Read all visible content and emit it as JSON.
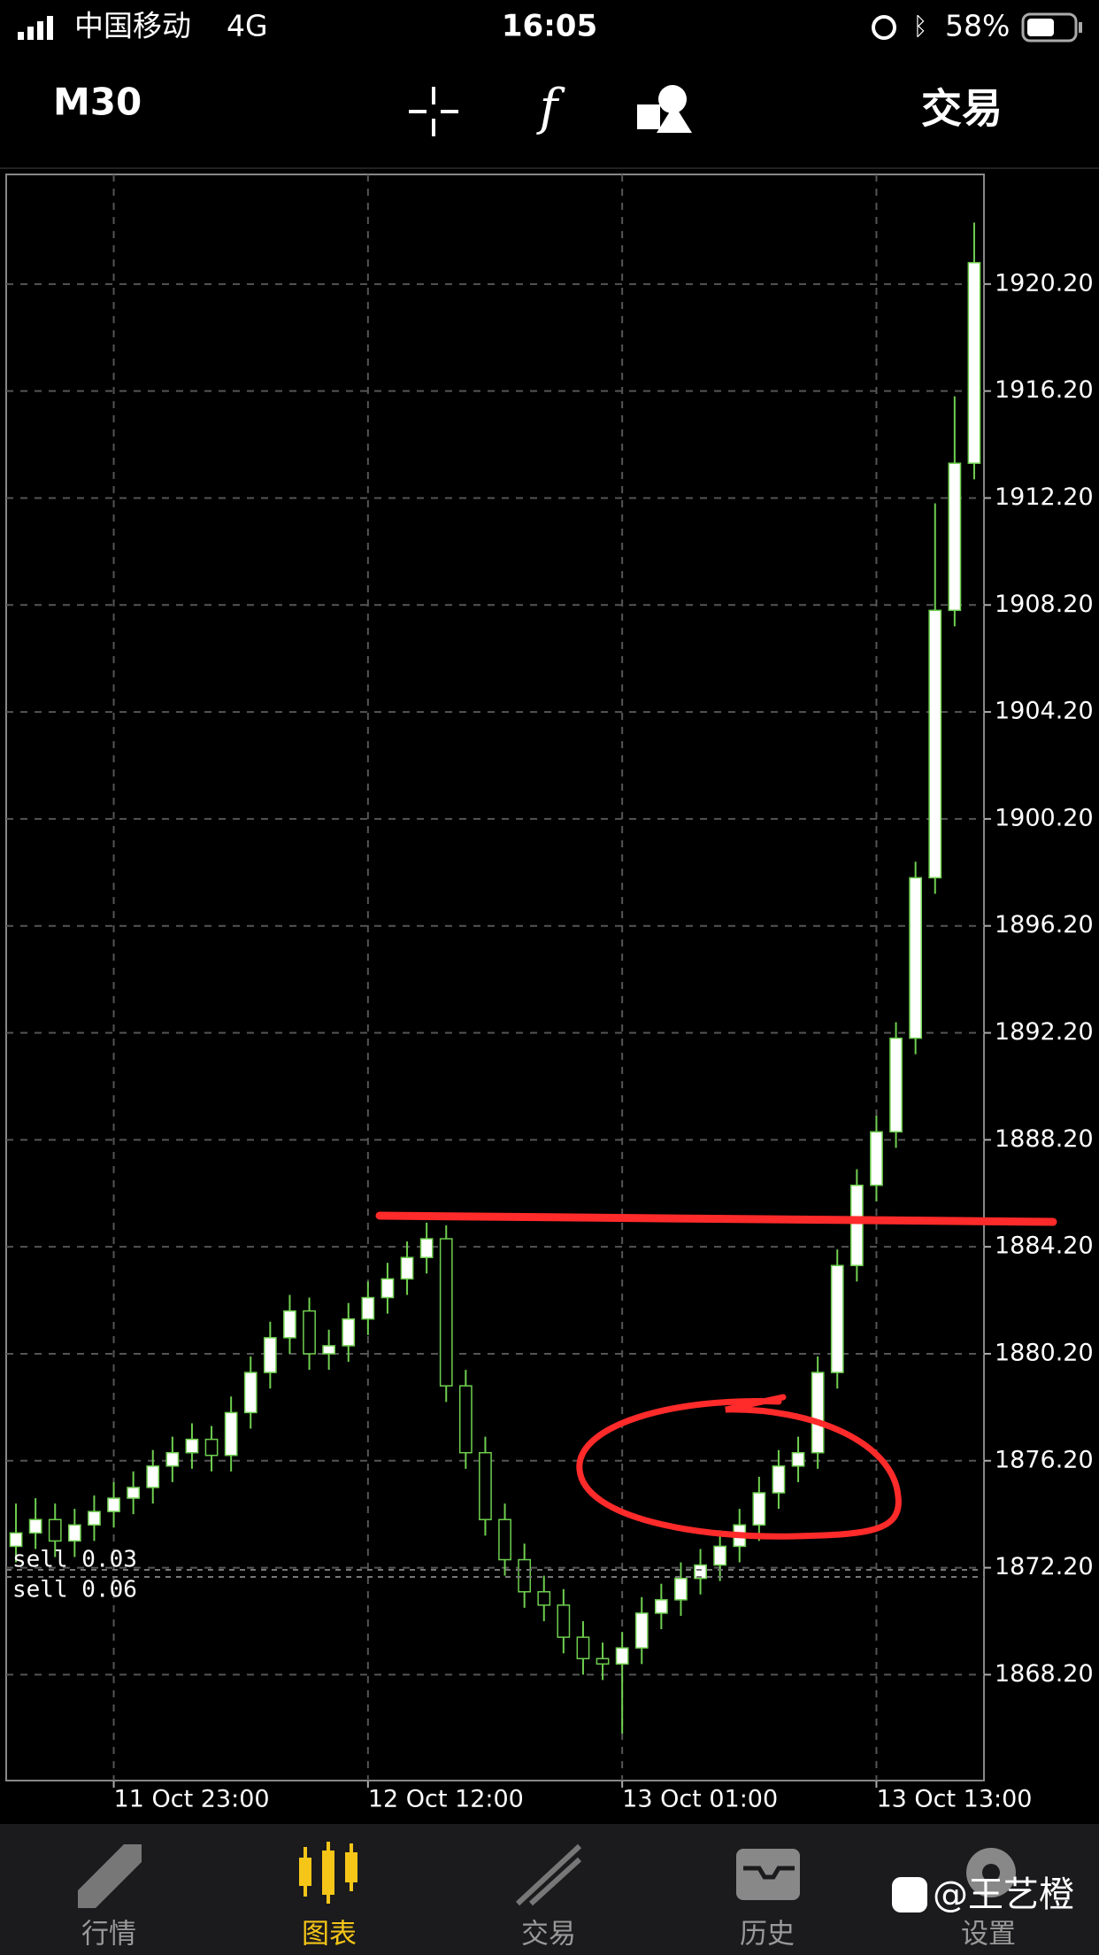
{
  "status_bar": {
    "carrier": "中国移动",
    "network": "4G",
    "time": "16:05",
    "battery": "58%"
  },
  "toolbar": {
    "timeframe": "M30",
    "trade": "交易"
  },
  "chart_data": {
    "type": "candlestick",
    "categories": [
      null,
      null,
      null,
      null,
      null,
      "11 Oct 23:00",
      null,
      null,
      null,
      null,
      null,
      null,
      null,
      null,
      null,
      null,
      null,
      null,
      "12 Oct 12:00",
      null,
      null,
      null,
      null,
      null,
      null,
      null,
      null,
      null,
      null,
      null,
      null,
      "13 Oct 01:00",
      null,
      null,
      null,
      null,
      null,
      null,
      null,
      null,
      null,
      null,
      null,
      null,
      "13 Oct 13:00",
      null,
      null,
      null,
      null,
      null
    ],
    "open": [
      1873.0,
      1873.5,
      1874.0,
      1873.2,
      1873.8,
      1874.3,
      1874.8,
      1875.2,
      1876.0,
      1876.5,
      1877.0,
      1876.4,
      1878.0,
      1879.5,
      1880.8,
      1881.8,
      1880.2,
      1880.5,
      1881.5,
      1882.3,
      1883.0,
      1883.8,
      1884.5,
      1879.0,
      1876.5,
      1874.0,
      1872.5,
      1871.3,
      1870.8,
      1869.6,
      1868.8,
      1868.6,
      1869.2,
      1870.5,
      1871.0,
      1871.8,
      1872.3,
      1873.0,
      1873.8,
      1875.0,
      1876.0,
      1876.5,
      1879.5,
      1883.5,
      1886.5,
      1888.5,
      1892.0,
      1898.0,
      1908.0,
      1913.5
    ],
    "close": [
      1873.5,
      1874.0,
      1873.2,
      1873.8,
      1874.3,
      1874.8,
      1875.2,
      1876.0,
      1876.5,
      1877.0,
      1876.4,
      1878.0,
      1879.5,
      1880.8,
      1881.8,
      1880.2,
      1880.5,
      1881.5,
      1882.3,
      1883.0,
      1883.8,
      1884.5,
      1879.0,
      1876.5,
      1874.0,
      1872.5,
      1871.3,
      1870.8,
      1869.6,
      1868.8,
      1868.6,
      1869.2,
      1870.5,
      1871.0,
      1871.8,
      1872.3,
      1873.0,
      1873.8,
      1875.0,
      1876.0,
      1876.5,
      1879.5,
      1883.5,
      1886.5,
      1888.5,
      1892.0,
      1898.0,
      1908.0,
      1913.5,
      1921.0
    ],
    "high": [
      1874.6,
      1874.8,
      1874.6,
      1874.4,
      1874.9,
      1875.4,
      1875.8,
      1876.6,
      1877.1,
      1877.6,
      1877.5,
      1878.6,
      1880.1,
      1881.4,
      1882.4,
      1882.3,
      1881.1,
      1882.1,
      1882.9,
      1883.6,
      1884.4,
      1885.1,
      1885.0,
      1879.6,
      1877.1,
      1874.6,
      1873.1,
      1871.9,
      1871.4,
      1870.2,
      1869.4,
      1869.8,
      1871.1,
      1871.6,
      1872.4,
      1872.9,
      1873.6,
      1874.4,
      1875.6,
      1876.6,
      1877.1,
      1880.1,
      1884.1,
      1887.1,
      1889.1,
      1892.6,
      1898.6,
      1912.0,
      1916.0,
      1922.5
    ],
    "low": [
      1872.4,
      1872.9,
      1872.6,
      1872.6,
      1873.2,
      1873.7,
      1874.2,
      1874.6,
      1875.4,
      1875.9,
      1875.8,
      1875.8,
      1877.4,
      1878.9,
      1880.2,
      1879.6,
      1879.6,
      1879.9,
      1880.9,
      1881.7,
      1882.4,
      1883.2,
      1878.4,
      1875.9,
      1873.4,
      1871.9,
      1870.7,
      1870.2,
      1869.0,
      1868.2,
      1868.0,
      1866.0,
      1868.6,
      1869.9,
      1870.4,
      1871.2,
      1871.7,
      1872.4,
      1873.2,
      1874.4,
      1875.4,
      1875.9,
      1878.9,
      1882.9,
      1885.9,
      1887.9,
      1891.4,
      1897.4,
      1907.4,
      1912.9
    ],
    "color": "#6fcf4f",
    "up_fill": "#ffffff",
    "down_fill": "#000000",
    "ylim": [
      1864.24,
      1924.3
    ],
    "yticks": [
      {
        "value": 1868.2,
        "label": "1868.20"
      },
      {
        "value": 1872.2,
        "label": "1872.20"
      },
      {
        "value": 1876.2,
        "label": "1876.20"
      },
      {
        "value": 1880.2,
        "label": "1880.20"
      },
      {
        "value": 1884.2,
        "label": "1884.20"
      },
      {
        "value": 1888.2,
        "label": "1888.20"
      },
      {
        "value": 1892.2,
        "label": "1892.20"
      },
      {
        "value": 1896.2,
        "label": "1896.20"
      },
      {
        "value": 1900.2,
        "label": "1900.20"
      },
      {
        "value": 1904.2,
        "label": "1904.20"
      },
      {
        "value": 1908.2,
        "label": "1908.20"
      },
      {
        "value": 1912.2,
        "label": "1912.20"
      },
      {
        "value": 1916.2,
        "label": "1916.20"
      },
      {
        "value": 1920.2,
        "label": "1920.20"
      }
    ],
    "grid": true
  },
  "orders": [
    "sell 0.03",
    "sell 0.06"
  ],
  "tabs": [
    "行情",
    "图表",
    "交易",
    "历史",
    "设置"
  ],
  "watermark": "@王艺橙"
}
